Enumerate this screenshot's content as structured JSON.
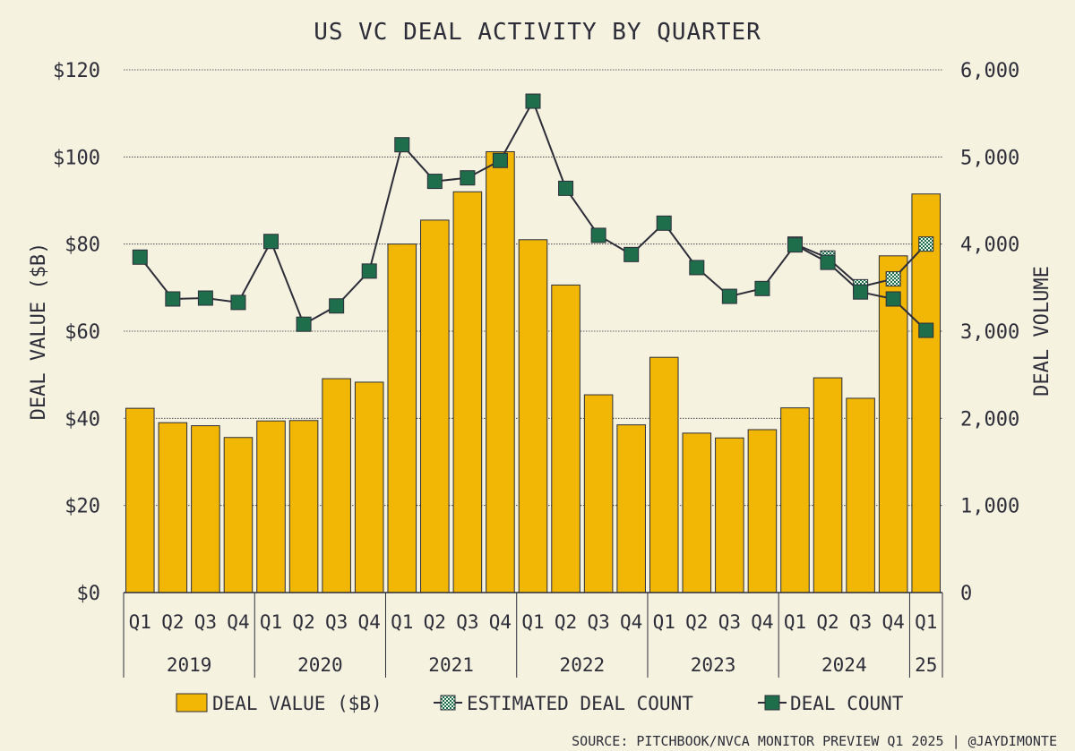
{
  "chart_data": {
    "type": "bar",
    "title": "US VC DEAL ACTIVITY BY QUARTER",
    "ylabel": "DEAL VALUE ($B)",
    "y2label": "DEAL VOLUME",
    "ylim": [
      0,
      120
    ],
    "y2lim": [
      0,
      6000
    ],
    "y_ticks": [
      0,
      20,
      40,
      60,
      80,
      100,
      120
    ],
    "y_tick_labels": [
      "$0",
      "$20",
      "$40",
      "$60",
      "$80",
      "$100",
      "$120"
    ],
    "y2_ticks": [
      0,
      1000,
      2000,
      3000,
      4000,
      5000,
      6000
    ],
    "y2_tick_labels": [
      "0",
      "1,000",
      "2,000",
      "3,000",
      "4,000",
      "5,000",
      "6,000"
    ],
    "grid": true,
    "categories": [
      "Q1",
      "Q2",
      "Q3",
      "Q4",
      "Q1",
      "Q2",
      "Q3",
      "Q4",
      "Q1",
      "Q2",
      "Q3",
      "Q4",
      "Q1",
      "Q2",
      "Q3",
      "Q4",
      "Q1",
      "Q2",
      "Q3",
      "Q4",
      "Q1",
      "Q2",
      "Q3",
      "Q4",
      "Q1"
    ],
    "years": [
      {
        "label": "2019",
        "count": 4
      },
      {
        "label": "2020",
        "count": 4
      },
      {
        "label": "2021",
        "count": 4
      },
      {
        "label": "2022",
        "count": 4
      },
      {
        "label": "2023",
        "count": 4
      },
      {
        "label": "2024",
        "count": 4
      },
      {
        "label": "25",
        "count": 1
      }
    ],
    "series": [
      {
        "name": "DEAL VALUE ($B)",
        "type": "bar",
        "axis": "left",
        "color": "#f2b705",
        "values": [
          42.3,
          39.0,
          38.3,
          35.6,
          39.4,
          39.5,
          49.1,
          48.3,
          80.0,
          85.5,
          92.0,
          101.2,
          81.0,
          70.6,
          45.4,
          38.5,
          54.0,
          36.6,
          35.5,
          37.4,
          42.4,
          49.3,
          44.6,
          77.3,
          91.5
        ]
      },
      {
        "name": "ESTIMATED DEAL COUNT",
        "type": "line",
        "axis": "right",
        "color": "#1e6e4b",
        "points": [
          {
            "index": 20,
            "value": 4000
          },
          {
            "index": 21,
            "value": 3840
          },
          {
            "index": 22,
            "value": 3510
          },
          {
            "index": 23,
            "value": 3600
          },
          {
            "index": 24,
            "value": 4000
          }
        ]
      },
      {
        "name": "DEAL COUNT",
        "type": "line",
        "axis": "right",
        "color": "#1e6e4b",
        "values": [
          3850,
          3370,
          3380,
          3330,
          4030,
          3080,
          3290,
          3690,
          5140,
          4720,
          4760,
          4960,
          5640,
          4640,
          4100,
          3880,
          4240,
          3730,
          3400,
          3490,
          3990,
          3790,
          3450,
          3370,
          3010
        ]
      }
    ],
    "legend": {
      "position": "bottom",
      "items": [
        "DEAL VALUE ($B)",
        "ESTIMATED DEAL COUNT",
        "DEAL COUNT"
      ]
    },
    "source": "SOURCE: PITCHBOOK/NVCA MONITOR PREVIEW Q1 2025 | @JAYDIMONTE"
  }
}
